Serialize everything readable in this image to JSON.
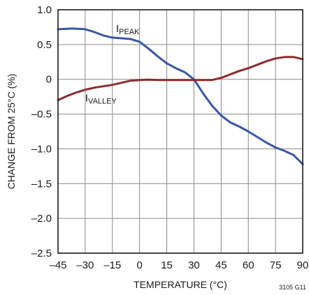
{
  "chart_data": {
    "type": "line",
    "title": "",
    "xlabel": "TEMPERATURE (°C)",
    "ylabel": "CHANGE FROM 25°C (%)",
    "xlim": [
      -45,
      90
    ],
    "ylim": [
      -2.5,
      1.0
    ],
    "x_ticks": [
      -45,
      -30,
      -15,
      0,
      15,
      30,
      45,
      60,
      75,
      90
    ],
    "x_tick_labels": [
      "–45",
      "–30",
      "–15",
      "0",
      "15",
      "30",
      "45",
      "60",
      "75",
      "90"
    ],
    "y_ticks": [
      1.0,
      0.5,
      0,
      -0.5,
      -1.0,
      -1.5,
      -2.0,
      -2.5
    ],
    "y_tick_labels": [
      "1.0",
      "0.5",
      "0",
      "–0.5",
      "–1.0",
      "–1.5",
      "–2.0",
      "–2.5"
    ],
    "grid": true,
    "series": [
      {
        "name": "PEAK",
        "label_main": "I",
        "label_sub": "PEAK",
        "color": "#3a56a5",
        "x": [
          -45,
          -37,
          -30,
          -25,
          -20,
          -15,
          -10,
          -5,
          0,
          5,
          10,
          15,
          20,
          25,
          30,
          35,
          40,
          45,
          50,
          55,
          60,
          65,
          70,
          75,
          80,
          85,
          90
        ],
        "y": [
          0.72,
          0.73,
          0.72,
          0.68,
          0.63,
          0.6,
          0.59,
          0.58,
          0.54,
          0.44,
          0.33,
          0.23,
          0.16,
          0.1,
          0.0,
          -0.2,
          -0.38,
          -0.52,
          -0.62,
          -0.68,
          -0.75,
          -0.83,
          -0.91,
          -0.98,
          -1.03,
          -1.09,
          -1.22
        ]
      },
      {
        "name": "VALLEY",
        "label_main": "I",
        "label_sub": "VALLEY",
        "color": "#8e2c2c",
        "x": [
          -45,
          -40,
          -35,
          -30,
          -25,
          -20,
          -15,
          -10,
          -5,
          0,
          5,
          10,
          15,
          20,
          25,
          30,
          35,
          40,
          45,
          50,
          55,
          60,
          65,
          70,
          75,
          80,
          85,
          90
        ],
        "y": [
          -0.3,
          -0.24,
          -0.19,
          -0.15,
          -0.12,
          -0.1,
          -0.08,
          -0.05,
          -0.02,
          -0.01,
          -0.005,
          -0.01,
          -0.01,
          -0.01,
          -0.01,
          -0.01,
          -0.01,
          -0.01,
          0.02,
          0.07,
          0.12,
          0.16,
          0.21,
          0.26,
          0.3,
          0.32,
          0.32,
          0.29
        ]
      }
    ],
    "figure_code": "3105 G11"
  }
}
